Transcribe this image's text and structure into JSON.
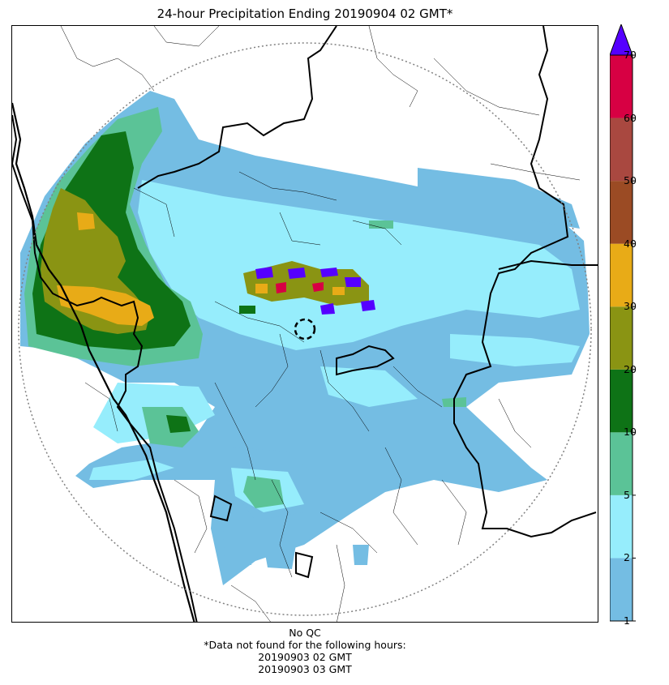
{
  "title": "24-hour Precipitation Ending 20190904 02 GMT*",
  "map": {
    "features": [
      "range-ring",
      "radar-site-marker",
      "coastline",
      "state-boundaries",
      "district-boundaries",
      "precipitation-field"
    ]
  },
  "colorbar": {
    "levels": [
      "1",
      "2",
      "5",
      "10",
      "20",
      "30",
      "40",
      "50",
      "60",
      "70"
    ],
    "colors": [
      "#74bde3",
      "#96edfc",
      "#5bc397",
      "#0e7316",
      "#8a9413",
      "#e8ab17",
      "#9b4b24",
      "#a94840",
      "#d70043"
    ],
    "extend_color": "#5500ff",
    "extend": "max"
  },
  "footer": {
    "line1": "No QC",
    "line2": "*Data not found for the following hours:",
    "line3": "20190903 02 GMT",
    "line4": "20190903 03 GMT"
  }
}
